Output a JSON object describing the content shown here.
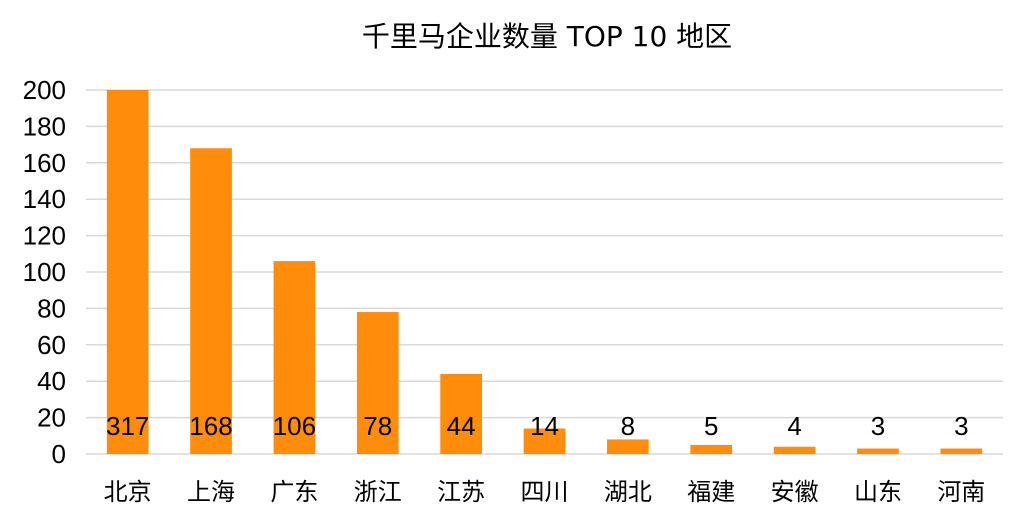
{
  "chart_data": {
    "type": "bar",
    "title": "千里马企业数量 TOP 10 地区",
    "xlabel": "",
    "ylabel": "",
    "categories": [
      "北京",
      "上海",
      "广东",
      "浙江",
      "江苏",
      "四川",
      "湖北",
      "福建",
      "安徽",
      "山东",
      "河南"
    ],
    "values": [
      317,
      168,
      106,
      78,
      44,
      14,
      8,
      5,
      4,
      3,
      3
    ],
    "data_labels": [
      "317",
      "168",
      "106",
      "78",
      "44",
      "14",
      "8",
      "5",
      "4",
      "3",
      "3"
    ],
    "ylim": [
      0,
      200
    ],
    "yticks": [
      "0",
      "20",
      "40",
      "60",
      "80",
      "100",
      "120",
      "140",
      "160",
      "180",
      "200"
    ],
    "grid": true,
    "legend": "none",
    "colors": {
      "bar": "#FF8C0A",
      "grid": "#D9D9D9",
      "axis": "#D9D9D9"
    }
  }
}
